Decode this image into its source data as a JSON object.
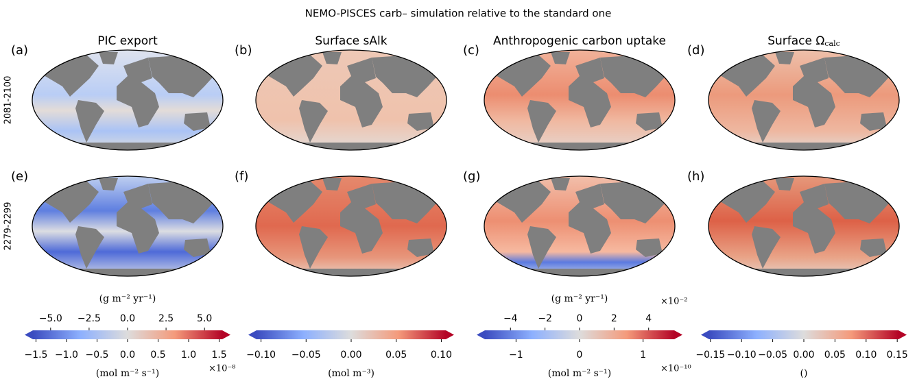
{
  "title": "NEMO-PISCES carb– simulation relative to the standard one",
  "columns": [
    {
      "title": "PIC export"
    },
    {
      "title": "Surface sAlk"
    },
    {
      "title": "Anthropogenic carbon uptake"
    },
    {
      "title": "Surface Ω",
      "subscript": "calc"
    }
  ],
  "rows": [
    "2081-2100",
    "2279-2299"
  ],
  "panels": [
    "(a)",
    "(b)",
    "(c)",
    "(d)",
    "(e)",
    "(f)",
    "(g)",
    "(h)"
  ],
  "colorbars": [
    {
      "bottom": {
        "label": "(mol m⁻² s⁻¹)",
        "offset": "×10⁻⁸",
        "lim": [
          -1.55,
          1.55
        ],
        "ticks": [
          {
            "value": -1.5,
            "label": "−1.5"
          },
          {
            "value": -1.0,
            "label": "−1.0"
          },
          {
            "value": -0.5,
            "label": "−0.5"
          },
          {
            "value": 0.0,
            "label": "0.0"
          },
          {
            "value": 0.5,
            "label": "0.5"
          },
          {
            "value": 1.0,
            "label": "1.0"
          },
          {
            "value": 1.5,
            "label": "1.5"
          }
        ]
      },
      "top": {
        "label": "(g m⁻² yr⁻¹)",
        "lim": [
          -6.15,
          6.15
        ],
        "ticks": [
          {
            "value": -5.0,
            "label": "−5.0"
          },
          {
            "value": -2.5,
            "label": "−2.5"
          },
          {
            "value": 0.0,
            "label": "0.0"
          },
          {
            "value": 2.5,
            "label": "2.5"
          },
          {
            "value": 5.0,
            "label": "5.0"
          }
        ]
      }
    },
    {
      "bottom": {
        "label": "(mol m⁻³)",
        "lim": [
          -0.105,
          0.105
        ],
        "ticks": [
          {
            "value": -0.1,
            "label": "−0.10"
          },
          {
            "value": -0.05,
            "label": "−0.05"
          },
          {
            "value": 0.0,
            "label": "0.00"
          },
          {
            "value": 0.05,
            "label": "0.05"
          },
          {
            "value": 0.1,
            "label": "0.10"
          }
        ]
      }
    },
    {
      "bottom": {
        "label": "(mol m⁻² s⁻¹)",
        "offset": "×10⁻¹⁰",
        "lim": [
          -1.49,
          1.49
        ],
        "ticks": [
          {
            "value": -1,
            "label": "−1"
          },
          0,
          1
        ]
      },
      "top": {
        "label": "(g m⁻² yr⁻¹)",
        "offset": "×10⁻²",
        "lim": [
          -5.48,
          5.48
        ],
        "ticks": [
          {
            "value": -4,
            "label": "−4"
          },
          {
            "value": -2,
            "label": "−2"
          },
          0,
          2,
          4
        ]
      }
    },
    {
      "bottom": {
        "label": "()",
        "lim": [
          -0.152,
          0.152
        ],
        "ticks": [
          {
            "value": -0.15,
            "label": "−0.15"
          },
          {
            "value": -0.1,
            "label": "−0.10"
          },
          {
            "value": -0.05,
            "label": "−0.05"
          },
          {
            "value": 0.0,
            "label": "0.00"
          },
          {
            "value": 0.05,
            "label": "0.05"
          },
          {
            "value": 0.1,
            "label": "0.10"
          },
          {
            "value": 0.15,
            "label": "0.15"
          }
        ]
      }
    }
  ]
}
